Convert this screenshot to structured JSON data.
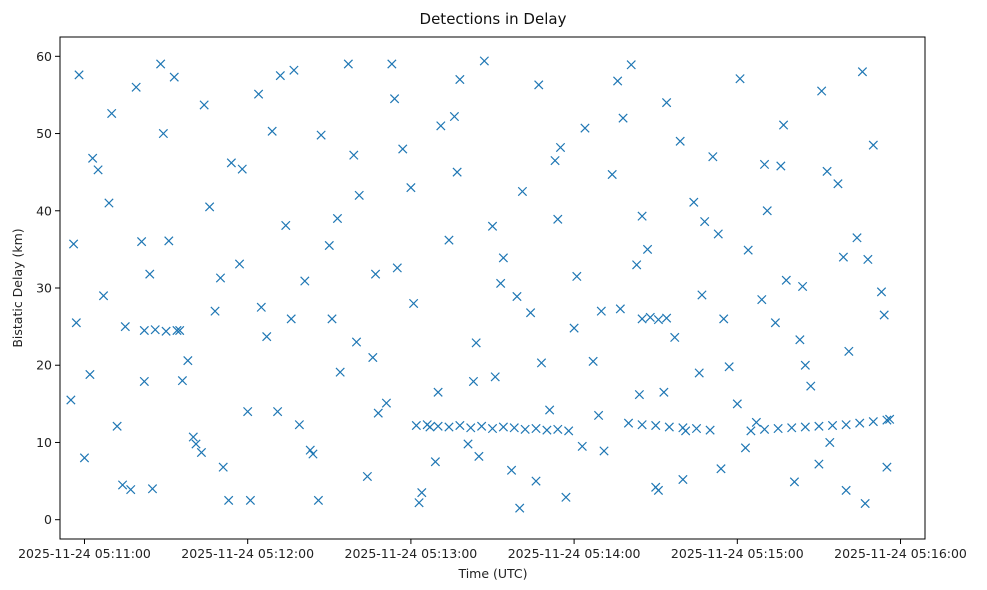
{
  "chart_data": {
    "type": "scatter",
    "title": "Detections in Delay",
    "xlabel": "Time (UTC)",
    "ylabel": "Bistatic Delay (km)",
    "x_axis_type": "datetime",
    "xlim": [
      "2025-11-24 05:10:51",
      "2025-11-24 05:16:09"
    ],
    "ylim": [
      -2.5,
      62.5
    ],
    "xticks": [
      "2025-11-24 05:11:00",
      "2025-11-24 05:12:00",
      "2025-11-24 05:13:00",
      "2025-11-24 05:14:00",
      "2025-11-24 05:15:00",
      "2025-11-24 05:16:00"
    ],
    "yticks": [
      0,
      10,
      20,
      30,
      40,
      50,
      60
    ],
    "marker": "x",
    "color": "#1f77b4",
    "grid": false,
    "series": [
      {
        "x": [
          "2025-11-24 05:10:55",
          "2025-11-24 05:10:56",
          "2025-11-24 05:10:58",
          "2025-11-24 05:11:02",
          "2025-11-24 05:11:05",
          "2025-11-24 05:11:09",
          "2025-11-24 05:11:12",
          "2025-11-24 05:11:15",
          "2025-11-24 05:11:19",
          "2025-11-24 05:11:22",
          "2025-11-24 05:11:25",
          "2025-11-24 05:11:28",
          "2025-11-24 05:11:31",
          "2025-11-24 05:11:35",
          "2025-11-24 05:11:38",
          "2025-11-24 05:11:41",
          "2025-11-24 05:11:44",
          "2025-11-24 05:11:48",
          "2025-11-24 05:11:51",
          "2025-11-24 05:11:54",
          "2025-11-24 05:11:57",
          "2025-11-24 05:12:01",
          "2025-11-24 05:12:04",
          "2025-11-24 05:12:07",
          "2025-11-24 05:12:11",
          "2025-11-24 05:12:14",
          "2025-11-24 05:12:17",
          "2025-11-24 05:12:21",
          "2025-11-24 05:12:24",
          "2025-11-24 05:12:27",
          "2025-11-24 05:12:31",
          "2025-11-24 05:12:34",
          "2025-11-24 05:12:37",
          "2025-11-24 05:12:41",
          "2025-11-24 05:12:44",
          "2025-11-24 05:12:47",
          "2025-11-24 05:12:51",
          "2025-11-24 05:12:54",
          "2025-11-24 05:12:57",
          "2025-11-24 05:13:01",
          "2025-11-24 05:13:04",
          "2025-11-24 05:13:07",
          "2025-11-24 05:13:11",
          "2025-11-24 05:13:14",
          "2025-11-24 05:13:17",
          "2025-11-24 05:13:21",
          "2025-11-24 05:13:24",
          "2025-11-24 05:13:27",
          "2025-11-24 05:13:31",
          "2025-11-24 05:13:34",
          "2025-11-24 05:13:37",
          "2025-11-24 05:13:41",
          "2025-11-24 05:13:44",
          "2025-11-24 05:13:47",
          "2025-11-24 05:13:51",
          "2025-11-24 05:13:54",
          "2025-11-24 05:13:57",
          "2025-11-24 05:14:01",
          "2025-11-24 05:14:04",
          "2025-11-24 05:14:07",
          "2025-11-24 05:14:11",
          "2025-11-24 05:14:14",
          "2025-11-24 05:14:17",
          "2025-11-24 05:14:21",
          "2025-11-24 05:14:24",
          "2025-11-24 05:14:27",
          "2025-11-24 05:14:31",
          "2025-11-24 05:14:34",
          "2025-11-24 05:14:37",
          "2025-11-24 05:14:41",
          "2025-11-24 05:14:44",
          "2025-11-24 05:14:47",
          "2025-11-24 05:14:51",
          "2025-11-24 05:14:54",
          "2025-11-24 05:14:57",
          "2025-11-24 05:15:01",
          "2025-11-24 05:15:04",
          "2025-11-24 05:15:07",
          "2025-11-24 05:15:11",
          "2025-11-24 05:15:14",
          "2025-11-24 05:15:17",
          "2025-11-24 05:15:21",
          "2025-11-24 05:15:24",
          "2025-11-24 05:15:27",
          "2025-11-24 05:15:31",
          "2025-11-24 05:15:34",
          "2025-11-24 05:15:37",
          "2025-11-24 05:15:41",
          "2025-11-24 05:15:44",
          "2025-11-24 05:15:47",
          "2025-11-24 05:15:50",
          "2025-11-24 05:15:53",
          "2025-11-24 05:15:56",
          "2025-11-24 05:10:57",
          "2025-11-24 05:11:03",
          "2025-11-24 05:11:10",
          "2025-11-24 05:11:17",
          "2025-11-24 05:11:24",
          "2025-11-24 05:11:33",
          "2025-11-24 05:11:40",
          "2025-11-24 05:11:46",
          "2025-11-24 05:11:53",
          "2025-11-24 05:12:00",
          "2025-11-24 05:12:09",
          "2025-11-24 05:12:16",
          "2025-11-24 05:12:23",
          "2025-11-24 05:12:30",
          "2025-11-24 05:12:39",
          "2025-11-24 05:12:46",
          "2025-11-24 05:12:53",
          "2025-11-24 05:13:00",
          "2025-11-24 05:13:09",
          "2025-11-24 05:13:16",
          "2025-11-24 05:13:23",
          "2025-11-24 05:13:30",
          "2025-11-24 05:13:39",
          "2025-11-24 05:13:46",
          "2025-11-24 05:13:53",
          "2025-11-24 05:14:00",
          "2025-11-24 05:14:09",
          "2025-11-24 05:14:16",
          "2025-11-24 05:14:23",
          "2025-11-24 05:14:30",
          "2025-11-24 05:14:39",
          "2025-11-24 05:14:46",
          "2025-11-24 05:14:53",
          "2025-11-24 05:15:00",
          "2025-11-24 05:15:09",
          "2025-11-24 05:15:16",
          "2025-11-24 05:15:23",
          "2025-11-24 05:15:30",
          "2025-11-24 05:15:39",
          "2025-11-24 05:15:46",
          "2025-11-24 05:15:54",
          "2025-11-24 05:11:00",
          "2025-11-24 05:11:07",
          "2025-11-24 05:11:14",
          "2025-11-24 05:11:21",
          "2025-11-24 05:11:29",
          "2025-11-24 05:11:36",
          "2025-11-24 05:11:43",
          "2025-11-24 05:11:50",
          "2025-11-24 05:11:58",
          "2025-11-24 05:12:05",
          "2025-11-24 05:12:12",
          "2025-11-24 05:12:19",
          "2025-11-24 05:12:26",
          "2025-11-24 05:12:33",
          "2025-11-24 05:12:40",
          "2025-11-24 05:12:48",
          "2025-11-24 05:12:55",
          "2025-11-24 05:13:03",
          "2025-11-24 05:13:10",
          "2025-11-24 05:13:18",
          "2025-11-24 05:13:25",
          "2025-11-24 05:13:33",
          "2025-11-24 05:13:40",
          "2025-11-24 05:13:48",
          "2025-11-24 05:13:55",
          "2025-11-24 05:14:03",
          "2025-11-24 05:14:10",
          "2025-11-24 05:14:18",
          "2025-11-24 05:14:25",
          "2025-11-24 05:14:33",
          "2025-11-24 05:14:40",
          "2025-11-24 05:14:48",
          "2025-11-24 05:14:55",
          "2025-11-24 05:15:03",
          "2025-11-24 05:15:10",
          "2025-11-24 05:15:18",
          "2025-11-24 05:15:25",
          "2025-11-24 05:15:33",
          "2025-11-24 05:15:40",
          "2025-11-24 05:15:48",
          "2025-11-24 05:15:55",
          "2025-11-24 05:13:02",
          "2025-11-24 05:13:06",
          "2025-11-24 05:13:10",
          "2025-11-24 05:13:14",
          "2025-11-24 05:13:18",
          "2025-11-24 05:13:22",
          "2025-11-24 05:13:26",
          "2025-11-24 05:13:30",
          "2025-11-24 05:13:34",
          "2025-11-24 05:13:38",
          "2025-11-24 05:13:42",
          "2025-11-24 05:13:46",
          "2025-11-24 05:13:50",
          "2025-11-24 05:13:54",
          "2025-11-24 05:13:58",
          "2025-11-24 05:14:20",
          "2025-11-24 05:14:25",
          "2025-11-24 05:14:30",
          "2025-11-24 05:14:35",
          "2025-11-24 05:14:40",
          "2025-11-24 05:14:45",
          "2025-11-24 05:14:50",
          "2025-11-24 05:15:05",
          "2025-11-24 05:15:10",
          "2025-11-24 05:15:15",
          "2025-11-24 05:15:20",
          "2025-11-24 05:15:25",
          "2025-11-24 05:15:30",
          "2025-11-24 05:15:35",
          "2025-11-24 05:15:40",
          "2025-11-24 05:15:45",
          "2025-11-24 05:15:50",
          "2025-11-24 05:15:55",
          "2025-11-24 05:11:22",
          "2025-11-24 05:11:26",
          "2025-11-24 05:11:30",
          "2025-11-24 05:11:34",
          "2025-11-24 05:14:25",
          "2025-11-24 05:14:28",
          "2025-11-24 05:14:31",
          "2025-11-24 05:14:34"
        ],
        "y": [
          15.5,
          35.7,
          57.6,
          18.8,
          45.3,
          41.0,
          12.1,
          25.0,
          56.0,
          17.9,
          4.0,
          59.0,
          36.1,
          24.5,
          20.6,
          9.8,
          53.7,
          27.0,
          6.8,
          46.2,
          33.1,
          2.5,
          55.1,
          23.7,
          14.0,
          38.1,
          58.2,
          30.9,
          8.5,
          49.8,
          26.0,
          19.1,
          59.0,
          42.0,
          5.6,
          31.8,
          15.1,
          54.5,
          48.0,
          28.0,
          3.5,
          12.0,
          51.0,
          36.2,
          45.0,
          9.8,
          22.9,
          59.4,
          18.5,
          33.9,
          6.4,
          42.5,
          26.8,
          56.3,
          14.2,
          38.9,
          2.9,
          31.5,
          50.7,
          20.5,
          8.9,
          44.7,
          27.3,
          58.9,
          16.2,
          35.0,
          3.8,
          54.0,
          23.6,
          11.5,
          41.1,
          29.1,
          47.0,
          6.6,
          19.8,
          57.1,
          34.9,
          12.6,
          40.0,
          25.5,
          51.1,
          4.9,
          30.2,
          17.3,
          55.5,
          10.0,
          43.5,
          21.8,
          36.5,
          2.1,
          48.5,
          29.5,
          13.0,
          25.5,
          46.8,
          52.6,
          3.9,
          31.8,
          57.3,
          10.7,
          40.5,
          2.5,
          14.0,
          50.3,
          26.0,
          9.0,
          35.5,
          47.2,
          21.0,
          59.0,
          43.0,
          7.5,
          52.2,
          17.9,
          38.0,
          28.9,
          5.0,
          46.5,
          24.8,
          13.5,
          56.8,
          33.0,
          4.2,
          49.0,
          19.0,
          37.0,
          15.0,
          28.5,
          45.8,
          23.3,
          7.2,
          34.0,
          58.0,
          26.5,
          8.0,
          29.0,
          4.5,
          36.0,
          50.0,
          18.0,
          8.7,
          31.3,
          45.4,
          27.5,
          57.5,
          12.3,
          2.5,
          39.0,
          23.0,
          13.8,
          32.6,
          2.2,
          16.5,
          57.0,
          8.2,
          30.6,
          1.5,
          20.3,
          48.2,
          9.5,
          27.0,
          52.0,
          39.3,
          16.5,
          5.2,
          38.6,
          26.0,
          9.3,
          46.0,
          31.0,
          20.0,
          45.1,
          3.8,
          33.7,
          6.8,
          12.2,
          12.3,
          12.1,
          12.0,
          12.2,
          11.9,
          12.1,
          11.8,
          12.0,
          11.9,
          11.7,
          11.8,
          11.6,
          11.7,
          11.5,
          12.5,
          12.3,
          12.2,
          12.0,
          11.9,
          11.8,
          11.6,
          11.5,
          11.7,
          11.8,
          11.9,
          12.0,
          12.1,
          12.2,
          12.3,
          12.5,
          12.7,
          12.9,
          24.5,
          24.6,
          24.4,
          24.5,
          26.0,
          26.2,
          25.9,
          26.1
        ]
      }
    ]
  }
}
